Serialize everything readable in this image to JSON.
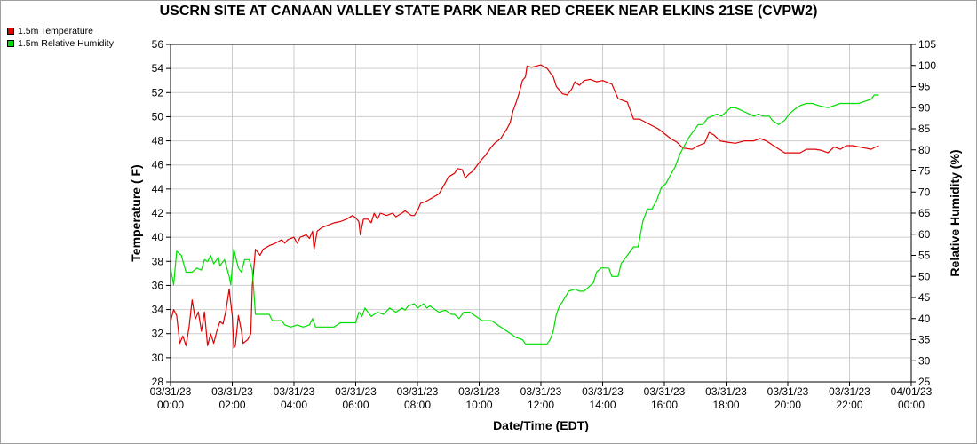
{
  "chart_data": {
    "type": "line",
    "title": "USCRN SITE AT CANAAN VALLEY STATE PARK NEAR RED CREEK NEAR ELKINS 21SE (CVPW2)",
    "xlabel": "Date/Time (EDT)",
    "ylabel_left": "Temperature ( F)",
    "ylabel_right": "Relative Humidity (%)",
    "ylim_left": [
      28,
      56
    ],
    "ylim_right": [
      25,
      105
    ],
    "yticks_left": [
      28,
      30,
      32,
      34,
      36,
      38,
      40,
      42,
      44,
      46,
      48,
      50,
      52,
      54,
      56
    ],
    "yticks_right": [
      25,
      30,
      35,
      40,
      45,
      50,
      55,
      60,
      65,
      70,
      75,
      80,
      85,
      90,
      95,
      100,
      105
    ],
    "xlim_hours": [
      0,
      24
    ],
    "xticks": [
      {
        "h": 0,
        "date": "03/31/23",
        "time": "00:00"
      },
      {
        "h": 2,
        "date": "03/31/23",
        "time": "02:00"
      },
      {
        "h": 4,
        "date": "03/31/23",
        "time": "04:00"
      },
      {
        "h": 6,
        "date": "03/31/23",
        "time": "06:00"
      },
      {
        "h": 8,
        "date": "03/31/23",
        "time": "08:00"
      },
      {
        "h": 10,
        "date": "03/31/23",
        "time": "10:00"
      },
      {
        "h": 12,
        "date": "03/31/23",
        "time": "12:00"
      },
      {
        "h": 14,
        "date": "03/31/23",
        "time": "14:00"
      },
      {
        "h": 16,
        "date": "03/31/23",
        "time": "16:00"
      },
      {
        "h": 18,
        "date": "03/31/23",
        "time": "18:00"
      },
      {
        "h": 20,
        "date": "03/31/23",
        "time": "20:00"
      },
      {
        "h": 22,
        "date": "03/31/23",
        "time": "22:00"
      },
      {
        "h": 24,
        "date": "04/01/23",
        "time": "00:00"
      }
    ],
    "grid": true,
    "legend_position": "top-left",
    "series": [
      {
        "name": "1.5m Temperature",
        "axis": "left",
        "color": "#e00000",
        "points": [
          [
            0.0,
            33.0
          ],
          [
            0.1,
            34.0
          ],
          [
            0.2,
            33.5
          ],
          [
            0.3,
            31.2
          ],
          [
            0.4,
            31.8
          ],
          [
            0.5,
            31.0
          ],
          [
            0.6,
            32.5
          ],
          [
            0.7,
            34.8
          ],
          [
            0.8,
            33.2
          ],
          [
            0.9,
            33.8
          ],
          [
            1.0,
            32.2
          ],
          [
            1.1,
            33.8
          ],
          [
            1.2,
            31.0
          ],
          [
            1.3,
            32.0
          ],
          [
            1.4,
            31.2
          ],
          [
            1.5,
            32.2
          ],
          [
            1.6,
            33.0
          ],
          [
            1.7,
            32.8
          ],
          [
            1.8,
            34.0
          ],
          [
            1.9,
            35.7
          ],
          [
            2.0,
            33.5
          ],
          [
            2.05,
            30.8
          ],
          [
            2.1,
            31.0
          ],
          [
            2.2,
            33.5
          ],
          [
            2.3,
            32.2
          ],
          [
            2.35,
            31.2
          ],
          [
            2.5,
            31.5
          ],
          [
            2.6,
            32.0
          ],
          [
            2.65,
            36.0
          ],
          [
            2.75,
            39.0
          ],
          [
            2.9,
            38.5
          ],
          [
            3.0,
            39.0
          ],
          [
            3.2,
            39.3
          ],
          [
            3.4,
            39.5
          ],
          [
            3.6,
            39.8
          ],
          [
            3.7,
            39.5
          ],
          [
            3.8,
            39.8
          ],
          [
            4.0,
            40.0
          ],
          [
            4.1,
            39.5
          ],
          [
            4.2,
            40.0
          ],
          [
            4.4,
            40.2
          ],
          [
            4.5,
            39.9
          ],
          [
            4.6,
            40.5
          ],
          [
            4.65,
            39.0
          ],
          [
            4.75,
            40.5
          ],
          [
            4.9,
            40.8
          ],
          [
            5.1,
            41.0
          ],
          [
            5.3,
            41.2
          ],
          [
            5.5,
            41.3
          ],
          [
            5.7,
            41.5
          ],
          [
            5.9,
            41.8
          ],
          [
            6.0,
            41.6
          ],
          [
            6.1,
            41.3
          ],
          [
            6.15,
            40.2
          ],
          [
            6.25,
            41.5
          ],
          [
            6.4,
            41.5
          ],
          [
            6.5,
            41.2
          ],
          [
            6.6,
            42.0
          ],
          [
            6.7,
            41.5
          ],
          [
            6.8,
            42.0
          ],
          [
            7.0,
            41.8
          ],
          [
            7.2,
            42.0
          ],
          [
            7.3,
            41.7
          ],
          [
            7.5,
            42.0
          ],
          [
            7.6,
            42.2
          ],
          [
            7.8,
            41.8
          ],
          [
            7.9,
            41.8
          ],
          [
            8.0,
            42.2
          ],
          [
            8.1,
            42.8
          ],
          [
            8.3,
            43.0
          ],
          [
            8.5,
            43.3
          ],
          [
            8.7,
            43.6
          ],
          [
            8.9,
            44.5
          ],
          [
            9.0,
            45.0
          ],
          [
            9.2,
            45.3
          ],
          [
            9.3,
            45.7
          ],
          [
            9.45,
            45.6
          ],
          [
            9.55,
            44.9
          ],
          [
            9.65,
            45.2
          ],
          [
            9.8,
            45.5
          ],
          [
            10.0,
            46.2
          ],
          [
            10.2,
            46.8
          ],
          [
            10.4,
            47.5
          ],
          [
            10.5,
            47.8
          ],
          [
            10.7,
            48.2
          ],
          [
            10.9,
            49.0
          ],
          [
            11.0,
            49.5
          ],
          [
            11.1,
            50.5
          ],
          [
            11.2,
            51.2
          ],
          [
            11.3,
            52.0
          ],
          [
            11.4,
            53.0
          ],
          [
            11.5,
            53.3
          ],
          [
            11.55,
            54.2
          ],
          [
            11.7,
            54.1
          ],
          [
            11.85,
            54.2
          ],
          [
            12.0,
            54.3
          ],
          [
            12.2,
            54.0
          ],
          [
            12.4,
            53.3
          ],
          [
            12.5,
            52.5
          ],
          [
            12.7,
            51.9
          ],
          [
            12.85,
            51.8
          ],
          [
            13.0,
            52.3
          ],
          [
            13.1,
            52.9
          ],
          [
            13.25,
            52.6
          ],
          [
            13.4,
            53.0
          ],
          [
            13.6,
            53.1
          ],
          [
            13.8,
            52.9
          ],
          [
            14.0,
            53.0
          ],
          [
            14.3,
            52.7
          ],
          [
            14.5,
            51.5
          ],
          [
            14.8,
            51.2
          ],
          [
            15.0,
            49.8
          ],
          [
            15.2,
            49.8
          ],
          [
            15.5,
            49.4
          ],
          [
            15.8,
            49.0
          ],
          [
            16.0,
            48.6
          ],
          [
            16.2,
            48.2
          ],
          [
            16.4,
            47.9
          ],
          [
            16.6,
            47.4
          ],
          [
            16.9,
            47.3
          ],
          [
            17.1,
            47.6
          ],
          [
            17.3,
            47.8
          ],
          [
            17.45,
            48.7
          ],
          [
            17.6,
            48.5
          ],
          [
            17.8,
            48.0
          ],
          [
            18.0,
            47.9
          ],
          [
            18.3,
            47.8
          ],
          [
            18.6,
            48.0
          ],
          [
            18.9,
            48.0
          ],
          [
            19.1,
            48.2
          ],
          [
            19.3,
            48.0
          ],
          [
            19.6,
            47.5
          ],
          [
            19.9,
            47.0
          ],
          [
            20.2,
            47.0
          ],
          [
            20.4,
            47.0
          ],
          [
            20.6,
            47.3
          ],
          [
            20.9,
            47.3
          ],
          [
            21.1,
            47.2
          ],
          [
            21.3,
            47.0
          ],
          [
            21.5,
            47.5
          ],
          [
            21.7,
            47.3
          ],
          [
            21.9,
            47.6
          ],
          [
            22.1,
            47.6
          ],
          [
            22.3,
            47.5
          ],
          [
            22.5,
            47.4
          ],
          [
            22.7,
            47.3
          ],
          [
            22.85,
            47.5
          ],
          [
            22.95,
            47.6
          ]
        ]
      },
      {
        "name": "1.5m Relative Humidity",
        "axis": "right",
        "color": "#00dd00",
        "points": [
          [
            0.0,
            52.0
          ],
          [
            0.1,
            48.0
          ],
          [
            0.2,
            56.0
          ],
          [
            0.35,
            55.0
          ],
          [
            0.5,
            51.0
          ],
          [
            0.7,
            51.0
          ],
          [
            0.85,
            52.0
          ],
          [
            1.0,
            51.5
          ],
          [
            1.1,
            54.0
          ],
          [
            1.2,
            53.5
          ],
          [
            1.3,
            55.0
          ],
          [
            1.4,
            53.0
          ],
          [
            1.55,
            54.5
          ],
          [
            1.6,
            52.5
          ],
          [
            1.75,
            54.0
          ],
          [
            1.9,
            50.0
          ],
          [
            1.95,
            48.0
          ],
          [
            2.05,
            56.5
          ],
          [
            2.2,
            52.0
          ],
          [
            2.3,
            51.0
          ],
          [
            2.4,
            54.0
          ],
          [
            2.55,
            54.0
          ],
          [
            2.65,
            51.5
          ],
          [
            2.75,
            41.0
          ],
          [
            3.0,
            41.0
          ],
          [
            3.2,
            41.0
          ],
          [
            3.3,
            39.5
          ],
          [
            3.6,
            39.5
          ],
          [
            3.7,
            38.5
          ],
          [
            3.9,
            38.0
          ],
          [
            4.1,
            38.5
          ],
          [
            4.3,
            38.0
          ],
          [
            4.5,
            38.5
          ],
          [
            4.6,
            40.0
          ],
          [
            4.7,
            38.0
          ],
          [
            5.0,
            38.0
          ],
          [
            5.3,
            38.0
          ],
          [
            5.5,
            39.0
          ],
          [
            5.8,
            39.0
          ],
          [
            6.0,
            39.0
          ],
          [
            6.1,
            41.5
          ],
          [
            6.2,
            40.5
          ],
          [
            6.3,
            42.5
          ],
          [
            6.5,
            40.5
          ],
          [
            6.7,
            41.5
          ],
          [
            6.9,
            41.0
          ],
          [
            7.1,
            42.5
          ],
          [
            7.3,
            41.5
          ],
          [
            7.5,
            42.5
          ],
          [
            7.6,
            42.0
          ],
          [
            7.7,
            43.0
          ],
          [
            7.9,
            43.5
          ],
          [
            8.0,
            42.5
          ],
          [
            8.2,
            43.5
          ],
          [
            8.3,
            42.5
          ],
          [
            8.4,
            43.0
          ],
          [
            8.5,
            42.5
          ],
          [
            8.7,
            41.5
          ],
          [
            8.9,
            42.0
          ],
          [
            9.1,
            41.0
          ],
          [
            9.2,
            41.0
          ],
          [
            9.35,
            40.0
          ],
          [
            9.5,
            41.5
          ],
          [
            9.7,
            41.5
          ],
          [
            9.9,
            40.5
          ],
          [
            10.1,
            39.5
          ],
          [
            10.4,
            39.5
          ],
          [
            10.6,
            38.5
          ],
          [
            10.8,
            37.5
          ],
          [
            11.0,
            36.5
          ],
          [
            11.2,
            35.5
          ],
          [
            11.4,
            35.0
          ],
          [
            11.5,
            34.0
          ],
          [
            11.8,
            34.0
          ],
          [
            12.0,
            34.0
          ],
          [
            12.2,
            34.0
          ],
          [
            12.3,
            35.0
          ],
          [
            12.4,
            37.0
          ],
          [
            12.5,
            41.0
          ],
          [
            12.6,
            43.0
          ],
          [
            12.7,
            44.0
          ],
          [
            12.9,
            46.5
          ],
          [
            13.1,
            47.0
          ],
          [
            13.25,
            46.5
          ],
          [
            13.4,
            46.5
          ],
          [
            13.55,
            47.5
          ],
          [
            13.7,
            48.5
          ],
          [
            13.8,
            51.0
          ],
          [
            13.95,
            52.0
          ],
          [
            14.2,
            52.0
          ],
          [
            14.3,
            50.0
          ],
          [
            14.5,
            50.0
          ],
          [
            14.6,
            53.0
          ],
          [
            14.8,
            55.0
          ],
          [
            15.0,
            57.0
          ],
          [
            15.15,
            57.0
          ],
          [
            15.3,
            63.0
          ],
          [
            15.45,
            66.0
          ],
          [
            15.6,
            66.0
          ],
          [
            15.75,
            68.0
          ],
          [
            15.9,
            71.0
          ],
          [
            16.05,
            72.0
          ],
          [
            16.2,
            74.0
          ],
          [
            16.35,
            76.0
          ],
          [
            16.5,
            79.0
          ],
          [
            16.65,
            81.0
          ],
          [
            16.8,
            83.0
          ],
          [
            16.95,
            84.5
          ],
          [
            17.1,
            86.0
          ],
          [
            17.25,
            86.0
          ],
          [
            17.4,
            87.5
          ],
          [
            17.55,
            88.0
          ],
          [
            17.7,
            88.5
          ],
          [
            17.85,
            88.0
          ],
          [
            18.0,
            89.0
          ],
          [
            18.15,
            90.0
          ],
          [
            18.3,
            90.0
          ],
          [
            18.45,
            89.5
          ],
          [
            18.6,
            89.0
          ],
          [
            18.75,
            88.5
          ],
          [
            18.9,
            88.0
          ],
          [
            19.05,
            88.5
          ],
          [
            19.2,
            88.0
          ],
          [
            19.4,
            88.0
          ],
          [
            19.5,
            87.0
          ],
          [
            19.7,
            86.0
          ],
          [
            19.9,
            87.0
          ],
          [
            20.05,
            88.5
          ],
          [
            20.2,
            89.5
          ],
          [
            20.4,
            90.5
          ],
          [
            20.6,
            91.0
          ],
          [
            20.8,
            91.0
          ],
          [
            21.0,
            90.5
          ],
          [
            21.3,
            90.0
          ],
          [
            21.5,
            90.5
          ],
          [
            21.7,
            91.0
          ],
          [
            22.0,
            91.0
          ],
          [
            22.3,
            91.0
          ],
          [
            22.5,
            91.5
          ],
          [
            22.7,
            92.0
          ],
          [
            22.8,
            93.0
          ],
          [
            22.95,
            93.0
          ]
        ]
      }
    ]
  }
}
